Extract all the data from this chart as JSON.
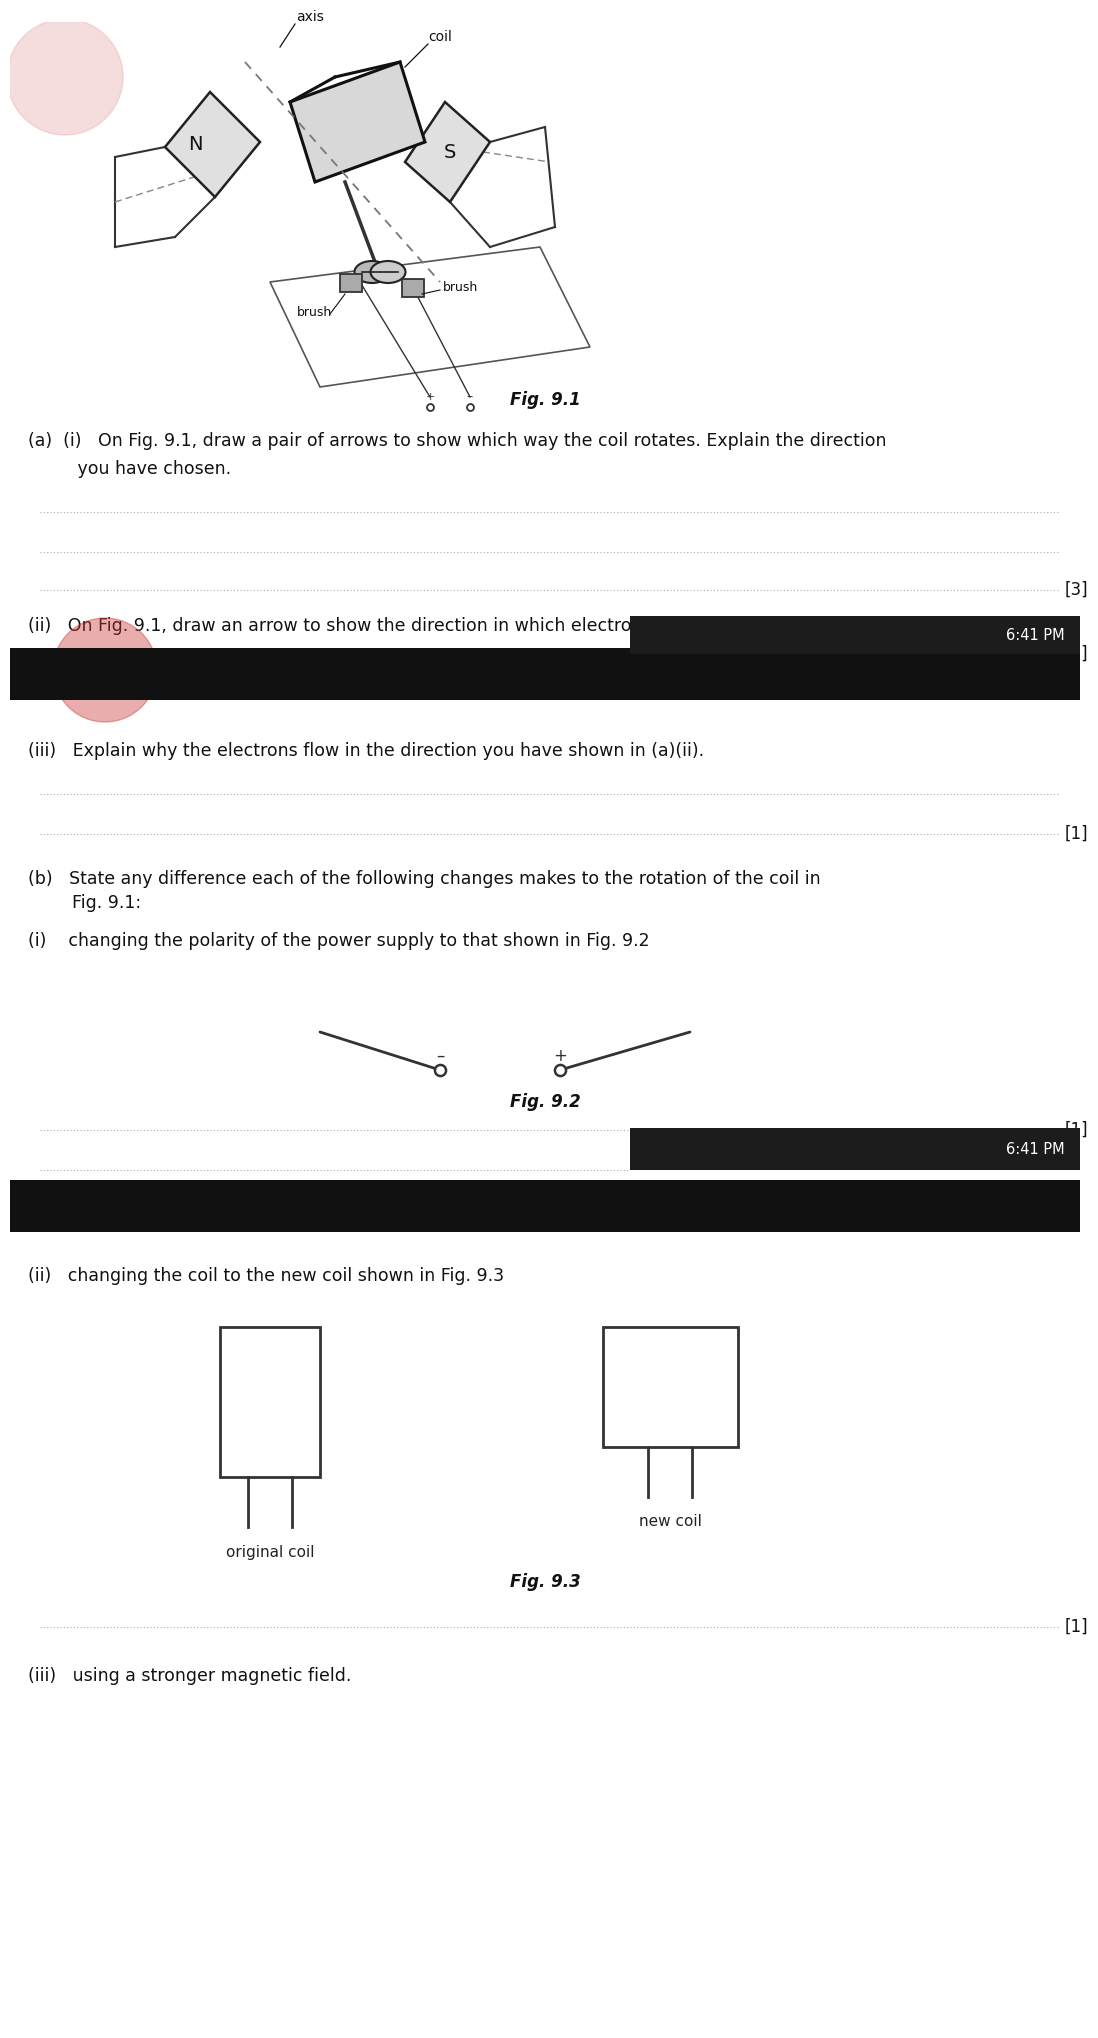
{
  "bg_color": "#f5f5f5",
  "white": "#ffffff",
  "black": "#000000",
  "dark": "#1a1a1a",
  "mid": "#333333",
  "light_gray": "#cccccc",
  "pink_circle_color": "#e88888",
  "fig91_label": "Fig. 9.1",
  "fig92_label": "Fig. 9.2",
  "fig93_label": "Fig. 9.3",
  "a_i_text1": "(a)  (i)   On Fig. 9.1, draw a pair of arrows to show which way the coil rotates. Explain the direction",
  "a_i_text2": "         you have chosen.",
  "a_ii_text": "(ii)   On Fig. 9.1, draw an arrow to show the direction in which electrons flow through the",
  "a_iii_text": "(iii)   Explain why the electrons flow in the direction you have shown in (a)(ii).",
  "b_text1": "(b)   State any difference each of the following changes makes to the rotation of the coil in",
  "b_text2": "        Fig. 9.1:",
  "b_i_text": "(i)    changing the polarity of the power supply to that shown in Fig. 9.2",
  "b_ii_text": "(ii)   changing the coil to the new coil shown in Fig. 9.3",
  "b_iii_text": "(iii)   using a stronger magnetic field.",
  "original_coil": "original coil",
  "new_coil": "new coil",
  "time_text": "6:41 PM",
  "mark3": "[3]",
  "mark1": "[1]"
}
